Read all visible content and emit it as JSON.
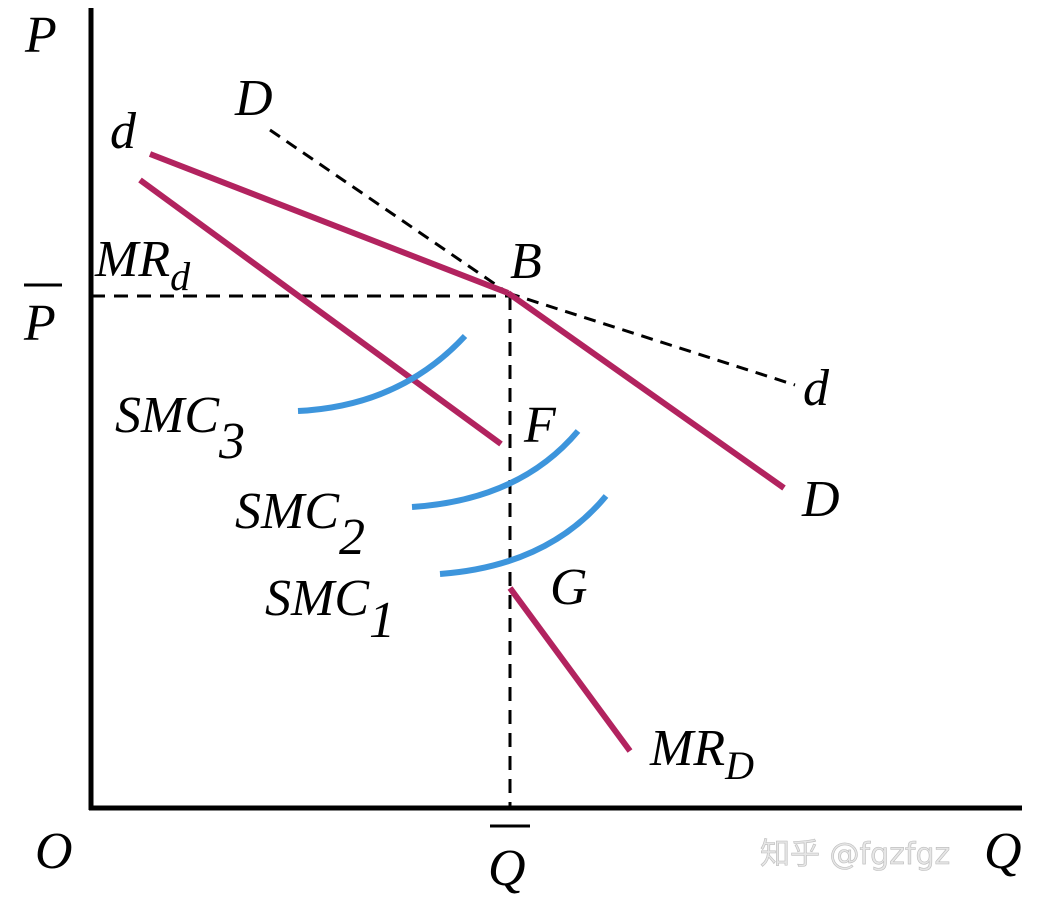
{
  "labels": {
    "y_axis": "P",
    "x_axis": "Q",
    "origin": "O",
    "p_bar": "P",
    "q_bar": "Q",
    "D_top": "D",
    "d_top": "d",
    "MRd_main": "MR",
    "MRd_sub": "d",
    "B": "B",
    "d_right": "d",
    "D_right": "D",
    "F": "F",
    "G": "G",
    "SMC3_main": "SMC",
    "SMC3_sub": "3",
    "SMC2_main": "SMC",
    "SMC2_sub": "2",
    "SMC1_main": "SMC",
    "SMC1_sub": "1",
    "MRD_main": "MR",
    "MRD_sub": "D"
  },
  "watermark": "知乎 @fgzfgz",
  "colors": {
    "demand_mr": "#b2235f",
    "smc": "#3d95dc",
    "axes": "#000000"
  }
}
